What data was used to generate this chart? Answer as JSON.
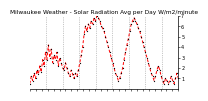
{
  "title": "Milwaukee Weather - Solar Radiation Avg per Day W/m2/minute",
  "values": [
    0.5,
    1.2,
    0.8,
    1.5,
    1.0,
    1.8,
    1.4,
    2.2,
    1.6,
    2.8,
    2.2,
    3.5,
    2.8,
    4.2,
    3.0,
    3.8,
    2.5,
    3.2,
    2.8,
    3.5,
    2.2,
    3.0,
    2.5,
    2.0,
    1.8,
    2.5,
    2.0,
    1.5,
    1.2,
    1.8,
    1.4,
    1.0,
    1.5,
    1.2,
    1.8,
    2.5,
    3.2,
    4.0,
    5.2,
    6.0,
    5.5,
    6.2,
    5.8,
    6.5,
    6.2,
    6.8,
    6.5,
    7.0,
    6.8,
    6.5,
    6.0,
    5.8,
    5.5,
    5.0,
    4.5,
    4.0,
    3.5,
    3.0,
    2.5,
    2.0,
    1.5,
    1.2,
    0.8,
    1.0,
    1.5,
    2.0,
    2.8,
    3.5,
    4.2,
    4.8,
    5.5,
    6.2,
    6.5,
    6.8,
    6.5,
    6.2,
    5.8,
    5.5,
    5.0,
    4.5,
    4.0,
    3.5,
    3.0,
    2.5,
    2.0,
    1.5,
    1.2,
    0.8,
    1.2,
    1.8,
    2.2,
    1.8,
    1.2,
    0.8,
    0.5,
    1.0,
    0.8,
    0.5,
    0.8,
    1.2,
    0.8,
    0.5,
    1.0,
    1.5,
    1.0
  ],
  "line_color": "#FF0000",
  "marker_color": "#000000",
  "background_color": "#ffffff",
  "plot_bg_color": "#ffffff",
  "grid_color": "#999999",
  "ylim": [
    0,
    7
  ],
  "ytick_labels": [
    "7",
    "6",
    "5",
    "4",
    "3",
    "2",
    "1"
  ],
  "yticks": [
    7,
    6,
    5,
    4,
    3,
    2,
    1
  ],
  "ylabel_fontsize": 3.5,
  "title_fontsize": 4.2,
  "num_vgrid_lines": 8
}
